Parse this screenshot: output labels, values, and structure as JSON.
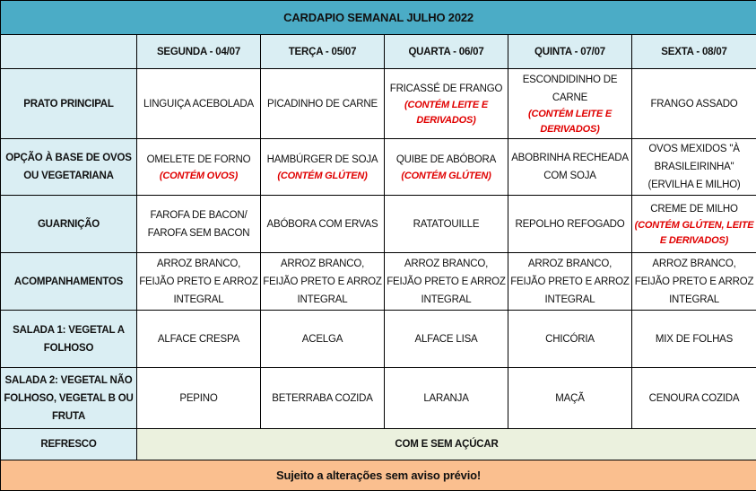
{
  "title": "CARDAPIO SEMANAL JULHO 2022",
  "days": [
    "SEGUNDA - 04/07",
    "TERÇA - 05/07",
    "QUARTA - 06/07",
    "QUINTA - 07/07",
    "SEXTA - 08/07"
  ],
  "rows": [
    {
      "label": "PRATO PRINCIPAL",
      "cells": [
        {
          "text": "LINGUIÇA ACEBOLADA",
          "note": ""
        },
        {
          "text": "PICADINHO DE CARNE",
          "note": ""
        },
        {
          "text": "FRICASSÉ DE FRANGO",
          "note": "(CONTÉM LEITE E DERIVADOS)"
        },
        {
          "text": "ESCONDIDINHO DE CARNE",
          "note": "(CONTÉM LEITE E DERIVADOS)"
        },
        {
          "text": "FRANGO ASSADO",
          "note": ""
        }
      ]
    },
    {
      "label": "OPÇÃO À BASE DE OVOS OU VEGETARIANA",
      "cells": [
        {
          "text": "OMELETE DE FORNO",
          "note": "(CONTÉM OVOS)"
        },
        {
          "text": "HAMBÚRGER DE SOJA",
          "note": "(CONTÉM GLÚTEN)"
        },
        {
          "text": "QUIBE DE ABÓBORA",
          "note": "(CONTÉM GLÚTEN)"
        },
        {
          "text": "ABOBRINHA RECHEADA COM SOJA",
          "note": ""
        },
        {
          "text": "OVOS MEXIDOS \"À BRASILEIRINHA\" (ERVILHA E MILHO)",
          "note": ""
        }
      ]
    },
    {
      "label": "GUARNIÇÃO",
      "cells": [
        {
          "text": "FAROFA DE BACON/ FAROFA SEM BACON",
          "note": ""
        },
        {
          "text": "ABÓBORA COM ERVAS",
          "note": ""
        },
        {
          "text": "RATATOUILLE",
          "note": ""
        },
        {
          "text": "REPOLHO REFOGADO",
          "note": ""
        },
        {
          "text": "CREME DE MILHO",
          "note": "(CONTÉM GLÚTEN, LEITE E DERIVADOS)"
        }
      ]
    },
    {
      "label": "ACOMPANHAMENTOS",
      "cells": [
        {
          "text": "ARROZ BRANCO, FEIJÃO PRETO E ARROZ INTEGRAL",
          "note": ""
        },
        {
          "text": "ARROZ BRANCO, FEIJÃO PRETO E ARROZ INTEGRAL",
          "note": ""
        },
        {
          "text": "ARROZ BRANCO, FEIJÃO PRETO E ARROZ INTEGRAL",
          "note": ""
        },
        {
          "text": "ARROZ BRANCO, FEIJÃO PRETO E ARROZ INTEGRAL",
          "note": ""
        },
        {
          "text": "ARROZ BRANCO, FEIJÃO PRETO E ARROZ INTEGRAL",
          "note": ""
        }
      ]
    },
    {
      "label": "SALADA 1: VEGETAL A FOLHOSO",
      "cells": [
        {
          "text": "ALFACE CRESPA",
          "note": ""
        },
        {
          "text": "ACELGA",
          "note": ""
        },
        {
          "text": "ALFACE LISA",
          "note": ""
        },
        {
          "text": "CHICÓRIA",
          "note": ""
        },
        {
          "text": "MIX DE FOLHAS",
          "note": ""
        }
      ]
    },
    {
      "label": "SALADA 2: VEGETAL NÃO FOLHOSO, VEGETAL B OU FRUTA",
      "cells": [
        {
          "text": "PEPINO",
          "note": ""
        },
        {
          "text": "BETERRABA COZIDA",
          "note": ""
        },
        {
          "text": "LARANJA",
          "note": ""
        },
        {
          "text": "MAÇÃ",
          "note": ""
        },
        {
          "text": "CENOURA COZIDA",
          "note": ""
        }
      ]
    }
  ],
  "refresco": {
    "label": "REFRESCO",
    "value": "COM E SEM AÇÚCAR"
  },
  "footer": "Sujeito a alterações sem aviso prévio!",
  "colors": {
    "title": "#4bacc6",
    "label": "#daeef3",
    "refresco": "#ebf1de",
    "footer": "#fabf8f",
    "allergen_note": "#e00000"
  }
}
